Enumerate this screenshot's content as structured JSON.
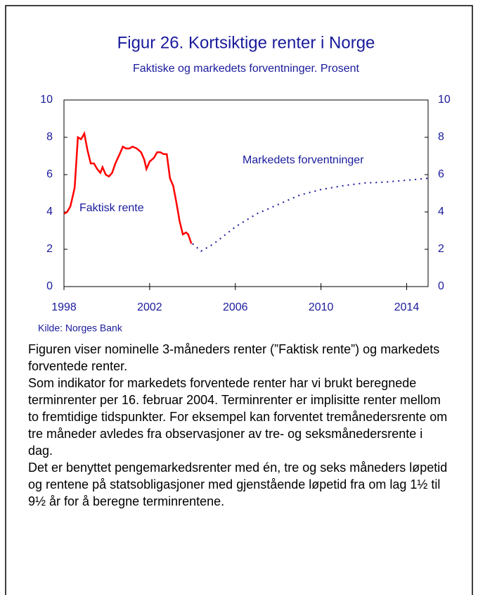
{
  "chart_data": {
    "type": "line",
    "title": "Figur 26. Kortsiktige renter i Norge",
    "subtitle": "Faktiske og markedets forventninger. Prosent",
    "source": "Kilde: Norges Bank",
    "xlim": [
      1998,
      2015
    ],
    "xticks": [
      1998,
      2002,
      2006,
      2010,
      2014
    ],
    "ylim": [
      0,
      10
    ],
    "yticks": [
      0,
      2,
      4,
      6,
      8,
      10
    ],
    "y2lim": [
      0,
      10
    ],
    "y2ticks": [
      0,
      2,
      4,
      6,
      8,
      10
    ],
    "series": [
      {
        "name": "Faktisk rente",
        "color": "#ff0000",
        "style": "solid",
        "x": [
          1998.0,
          1998.15,
          1998.3,
          1998.5,
          1998.65,
          1998.8,
          1998.95,
          1999.1,
          1999.25,
          1999.4,
          1999.55,
          1999.7,
          1999.8,
          1999.95,
          2000.1,
          2000.25,
          2000.4,
          2000.6,
          2000.75,
          2000.9,
          2001.05,
          2001.2,
          2001.4,
          2001.6,
          2001.75,
          2001.85,
          2002.0,
          2002.2,
          2002.35,
          2002.5,
          2002.65,
          2002.8,
          2002.95,
          2003.1,
          2003.25,
          2003.4,
          2003.55,
          2003.7,
          2003.8,
          2003.95
        ],
        "values": [
          3.9,
          4.0,
          4.3,
          5.3,
          8.0,
          7.9,
          8.2,
          7.3,
          6.6,
          6.6,
          6.3,
          6.1,
          6.4,
          6.0,
          5.9,
          6.1,
          6.6,
          7.1,
          7.5,
          7.4,
          7.4,
          7.5,
          7.4,
          7.2,
          6.8,
          6.3,
          6.7,
          6.9,
          7.2,
          7.2,
          7.1,
          7.1,
          5.8,
          5.4,
          4.5,
          3.5,
          2.8,
          2.9,
          2.8,
          2.3
        ]
      },
      {
        "name": "Markedets forventninger",
        "color": "#1a1a9c",
        "style": "dotted",
        "x": [
          2004.0,
          2004.4,
          2005.0,
          2006.0,
          2007.0,
          2008.0,
          2009.0,
          2010.0,
          2011.0,
          2012.0,
          2013.0,
          2014.0,
          2015.0
        ],
        "values": [
          2.3,
          1.9,
          2.3,
          3.2,
          3.9,
          4.4,
          4.9,
          5.2,
          5.4,
          5.55,
          5.6,
          5.7,
          5.8
        ]
      }
    ],
    "text": [
      "Figuren viser nominelle 3-måneders renter (”Faktisk rente”) og markedets forventede renter.",
      "Som indikator for markedets forventede renter har vi brukt beregnede terminrenter per 16. februar 2004. Terminrenter er implisitte renter mellom to fremtidige tidspunkter. For eksempel kan forventet tremånedersrente om tre måneder avledes fra observasjoner av tre- og seksmånedersrente i dag.",
      "Det er benyttet pengemarkedsrenter med én, tre og seks måneders løpetid og rentene på statsobligasjoner med gjenstående løpetid fra om lag 1½ til 9½ år for å beregne terminrentene."
    ]
  }
}
